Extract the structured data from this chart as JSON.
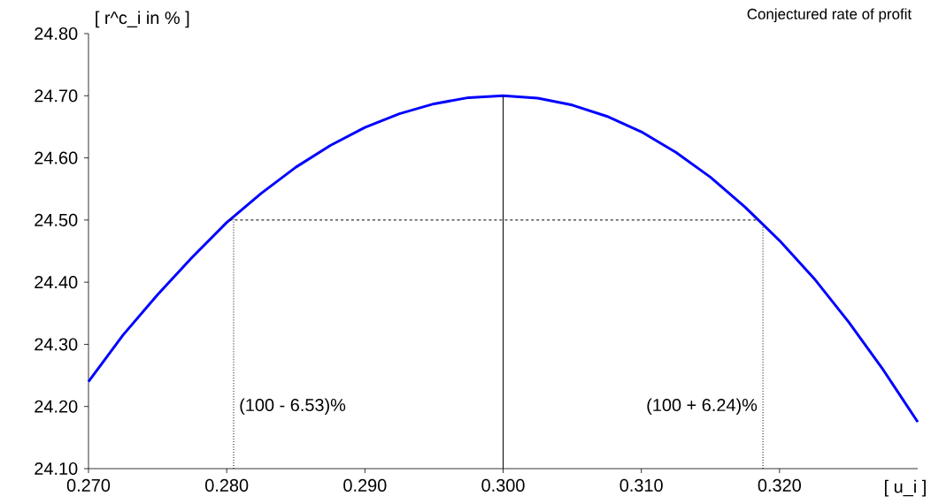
{
  "chart_data": {
    "type": "line",
    "title": "Conjectured rate of profit",
    "xlabel": "[ u_i ]",
    "ylabel": "[ r^c_i in % ]",
    "x": [
      0.27,
      0.2725,
      0.275,
      0.2775,
      0.28,
      0.2825,
      0.285,
      0.2875,
      0.29,
      0.2925,
      0.295,
      0.2975,
      0.3,
      0.3025,
      0.305,
      0.3075,
      0.31,
      0.3125,
      0.315,
      0.3175,
      0.32,
      0.3225,
      0.325,
      0.3275,
      0.33
    ],
    "series": [
      {
        "color": "#0000ff",
        "values": [
          24.24,
          24.315,
          24.38,
          24.44,
          24.496,
          24.543,
          24.585,
          24.62,
          24.649,
          24.671,
          24.687,
          24.697,
          24.7,
          24.696,
          24.685,
          24.667,
          24.642,
          24.609,
          24.569,
          24.521,
          24.467,
          24.406,
          24.336,
          24.259,
          24.175
        ]
      }
    ],
    "xlim": [
      0.27,
      0.33
    ],
    "xticks": [
      {
        "value": 0.27,
        "label": "0.270"
      },
      {
        "value": 0.28,
        "label": "0.280"
      },
      {
        "value": 0.29,
        "label": "0.290"
      },
      {
        "value": 0.3,
        "label": "0.300"
      },
      {
        "value": 0.31,
        "label": "0.310"
      },
      {
        "value": 0.32,
        "label": "0.320"
      }
    ],
    "ylim": [
      24.1,
      24.8
    ],
    "yticks": [
      {
        "value": 24.1,
        "label": "24.10"
      },
      {
        "value": 24.2,
        "label": "24.20"
      },
      {
        "value": 24.3,
        "label": "24.30"
      },
      {
        "value": 24.4,
        "label": "24.40"
      },
      {
        "value": 24.5,
        "label": "24.50"
      },
      {
        "value": 24.6,
        "label": "24.60"
      },
      {
        "value": 24.7,
        "label": "24.70"
      },
      {
        "value": 24.8,
        "label": "24.80"
      }
    ],
    "ref_lines": [
      {
        "axis": "x",
        "value": 0.3,
        "line_style": "solid"
      },
      {
        "axis": "y",
        "value": 24.5,
        "line_style": "dashed"
      },
      {
        "axis": "x",
        "value": 0.2805,
        "line_style": "dotted"
      },
      {
        "axis": "x",
        "value": 0.3188,
        "line_style": "dotted"
      }
    ],
    "annotations": [
      {
        "text": "(100 - 6.53)%",
        "x": 0.2805,
        "y": 24.2
      },
      {
        "text": "(100 + 6.24)%",
        "x": 0.3188,
        "y": 24.2
      }
    ],
    "grid": false,
    "marker": "none",
    "line_style": "solid"
  }
}
